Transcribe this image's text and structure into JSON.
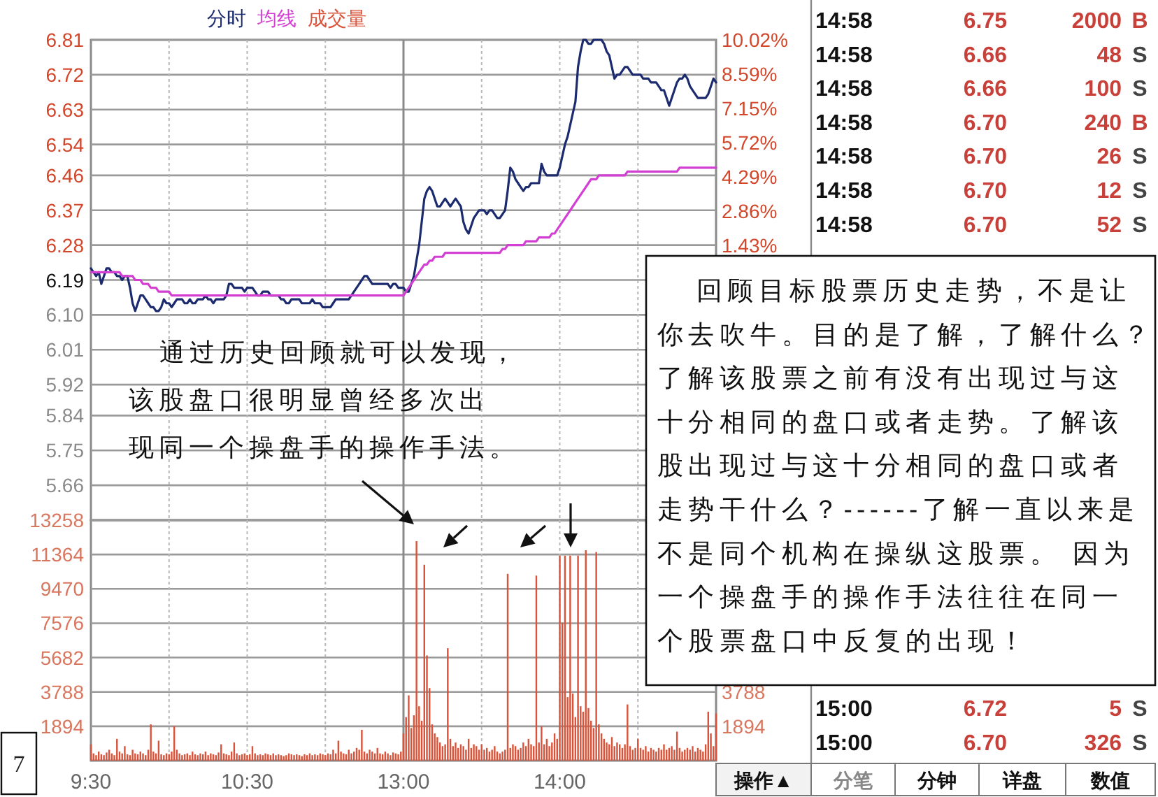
{
  "chart_data": [
    {
      "type": "line",
      "ylim": [
        5.57,
        6.81
      ],
      "y2lim": [
        -10.02,
        10.02
      ],
      "tick_labels": "y",
      "grid": true,
      "legend": "top left",
      "yticks": [
        6.81,
        6.72,
        6.63,
        6.54,
        6.46,
        6.37,
        6.28,
        6.19,
        {
          "value": 6.1,
          "label": "6.10"
        },
        6.01,
        5.92,
        5.84,
        5.75,
        5.66
      ],
      "y2ticks": [
        {
          "value": 10.02,
          "label": "10.02%"
        },
        {
          "value": 8.59,
          "label": "8.59%"
        },
        {
          "value": 7.15,
          "label": "7.15%"
        },
        {
          "value": 5.72,
          "label": "5.72%"
        },
        {
          "value": 4.29,
          "label": "4.29%"
        },
        {
          "value": 2.86,
          "label": "2.86%"
        },
        {
          "value": 1.43,
          "label": "1.43%"
        }
      ],
      "annotations": [
        "通过历史回顾就可以发现，该股盘口很明显曾经多次出现同一个操盘手的操作手法。",
        "回顾目标股票历史走势，不是让你去吹牛。目的是了解，了解什么？了解该股票之前有没有出现过与这十分相同的盘口或者走势。了解该股出现过与这十分相同的盘口或者走势干什么？------了解一直以来是不是同个机构在操纵这股票。 因为一个操盘手的操作手法往往在同一个股票盘口中反复的出现！"
      ],
      "series": [
        {
          "name": "分时",
          "color": "#1c2a6e",
          "values": [
            6.22,
            6.21,
            6.2,
            6.21,
            6.18,
            6.2,
            6.22,
            6.22,
            6.21,
            6.21,
            6.2,
            6.2,
            6.19,
            6.2,
            6.2,
            6.17,
            6.13,
            6.11,
            6.13,
            6.15,
            6.15,
            6.14,
            6.13,
            6.12,
            6.12,
            6.11,
            6.11,
            6.12,
            6.14,
            6.13,
            6.13,
            6.12,
            6.13,
            6.14,
            6.14,
            6.14,
            6.13,
            6.13,
            6.14,
            6.13,
            6.13,
            6.14,
            6.14,
            6.14,
            6.15,
            6.14,
            6.14,
            6.13,
            6.14,
            6.14,
            6.14,
            6.14,
            6.15,
            6.18,
            6.18,
            6.17,
            6.17,
            6.17,
            6.17,
            6.16,
            6.17,
            6.17,
            6.17,
            6.16,
            6.15,
            6.15,
            6.16,
            6.16,
            6.16,
            6.15,
            6.15,
            6.15,
            6.15,
            6.14,
            6.14,
            6.13,
            6.13,
            6.14,
            6.14,
            6.14,
            6.14,
            6.13,
            6.13,
            6.13,
            6.13,
            6.14,
            6.13,
            6.13,
            6.13,
            6.12,
            6.12,
            6.12,
            6.12,
            6.13,
            6.14,
            6.14,
            6.14,
            6.14,
            6.14,
            6.14,
            6.15,
            6.16,
            6.17,
            6.18,
            6.19,
            6.2,
            6.2,
            6.19,
            6.18,
            6.18,
            6.18,
            6.18,
            6.18,
            6.18,
            6.18,
            6.17,
            6.18,
            6.18,
            6.17,
            6.17,
            6.17,
            6.16,
            6.16,
            6.18,
            6.2,
            6.24,
            6.28,
            6.34,
            6.4,
            6.42,
            6.43,
            6.42,
            6.4,
            6.38,
            6.38,
            6.39,
            6.4,
            6.39,
            6.38,
            6.39,
            6.4,
            6.39,
            6.38,
            6.34,
            6.32,
            6.31,
            6.33,
            6.35,
            6.36,
            6.37,
            6.37,
            6.37,
            6.36,
            6.37,
            6.37,
            6.36,
            6.35,
            6.35,
            6.36,
            6.37,
            6.42,
            6.48,
            6.47,
            6.45,
            6.44,
            6.43,
            6.42,
            6.43,
            6.43,
            6.44,
            6.44,
            6.44,
            6.44,
            6.49,
            6.47,
            6.46,
            6.46,
            6.46,
            6.46,
            6.46,
            6.48,
            6.51,
            6.54,
            6.56,
            6.59,
            6.62,
            6.65,
            6.74,
            6.78,
            6.81,
            6.81,
            6.8,
            6.8,
            6.81,
            6.81,
            6.81,
            6.81,
            6.8,
            6.78,
            6.77,
            6.74,
            6.71,
            6.72,
            6.72,
            6.73,
            6.74,
            6.74,
            6.73,
            6.72,
            6.72,
            6.72,
            6.72,
            6.71,
            6.71,
            6.71,
            6.7,
            6.7,
            6.7,
            6.69,
            6.68,
            6.68,
            6.66,
            6.64,
            6.66,
            6.68,
            6.7,
            6.71,
            6.71,
            6.72,
            6.71,
            6.69,
            6.68,
            6.67,
            6.66,
            6.66,
            6.66,
            6.66,
            6.67,
            6.69,
            6.71,
            6.7
          ]
        },
        {
          "name": "均线",
          "color": "#d23fd2",
          "values": [
            6.21,
            6.21,
            6.21,
            6.21,
            6.21,
            6.21,
            6.21,
            6.21,
            6.21,
            6.21,
            6.21,
            6.21,
            6.2,
            6.2,
            6.2,
            6.2,
            6.2,
            6.19,
            6.19,
            6.19,
            6.18,
            6.18,
            6.18,
            6.17,
            6.17,
            6.17,
            6.16,
            6.16,
            6.16,
            6.16,
            6.16,
            6.15,
            6.15,
            6.15,
            6.15,
            6.15,
            6.15,
            6.15,
            6.15,
            6.15,
            6.15,
            6.15,
            6.15,
            6.15,
            6.15,
            6.15,
            6.15,
            6.15,
            6.15,
            6.15,
            6.15,
            6.15,
            6.15,
            6.15,
            6.15,
            6.15,
            6.15,
            6.15,
            6.15,
            6.15,
            6.15,
            6.15,
            6.15,
            6.15,
            6.15,
            6.15,
            6.15,
            6.15,
            6.15,
            6.15,
            6.15,
            6.15,
            6.15,
            6.15,
            6.15,
            6.15,
            6.15,
            6.15,
            6.15,
            6.15,
            6.15,
            6.15,
            6.15,
            6.15,
            6.15,
            6.15,
            6.15,
            6.15,
            6.15,
            6.15,
            6.15,
            6.15,
            6.15,
            6.15,
            6.15,
            6.15,
            6.15,
            6.15,
            6.15,
            6.15,
            6.15,
            6.15,
            6.15,
            6.15,
            6.15,
            6.15,
            6.15,
            6.15,
            6.15,
            6.15,
            6.15,
            6.15,
            6.15,
            6.15,
            6.15,
            6.15,
            6.15,
            6.15,
            6.15,
            6.15,
            6.15,
            6.16,
            6.17,
            6.18,
            6.19,
            6.2,
            6.21,
            6.22,
            6.23,
            6.23,
            6.24,
            6.24,
            6.25,
            6.25,
            6.25,
            6.25,
            6.26,
            6.26,
            6.26,
            6.26,
            6.26,
            6.26,
            6.26,
            6.26,
            6.26,
            6.26,
            6.26,
            6.26,
            6.26,
            6.26,
            6.26,
            6.26,
            6.26,
            6.26,
            6.26,
            6.26,
            6.26,
            6.26,
            6.27,
            6.27,
            6.28,
            6.28,
            6.28,
            6.28,
            6.28,
            6.28,
            6.28,
            6.29,
            6.29,
            6.29,
            6.29,
            6.29,
            6.3,
            6.3,
            6.3,
            6.3,
            6.3,
            6.31,
            6.31,
            6.32,
            6.33,
            6.34,
            6.35,
            6.36,
            6.37,
            6.38,
            6.39,
            6.4,
            6.41,
            6.42,
            6.43,
            6.44,
            6.45,
            6.45,
            6.45,
            6.46,
            6.46,
            6.46,
            6.46,
            6.46,
            6.46,
            6.46,
            6.46,
            6.46,
            6.46,
            6.46,
            6.47,
            6.47,
            6.47,
            6.47,
            6.47,
            6.47,
            6.47,
            6.47,
            6.47,
            6.47,
            6.47,
            6.47,
            6.47,
            6.47,
            6.47,
            6.47,
            6.47,
            6.47,
            6.47,
            6.47,
            6.48,
            6.48,
            6.48,
            6.48,
            6.48,
            6.48,
            6.48,
            6.48,
            6.48,
            6.48,
            6.48,
            6.48,
            6.48,
            6.48,
            6.48
          ]
        }
      ]
    },
    {
      "type": "bar",
      "ylim": [
        0,
        13258
      ],
      "y2lim": [
        0,
        13258
      ],
      "grid": true,
      "legend": "top left",
      "categories": [
        "9:30",
        null,
        null,
        null,
        null,
        null,
        null,
        null,
        null,
        null,
        null,
        null,
        null,
        null,
        null,
        null,
        null,
        null,
        null,
        null,
        null,
        null,
        null,
        null,
        null,
        null,
        null,
        null,
        null,
        null,
        null,
        null,
        null,
        null,
        null,
        null,
        null,
        null,
        null,
        null,
        null,
        null,
        null,
        null,
        null,
        null,
        null,
        null,
        null,
        null,
        null,
        null,
        null,
        null,
        null,
        null,
        null,
        null,
        null,
        null,
        "10:30",
        null,
        null,
        null,
        null,
        null,
        null,
        null,
        null,
        null,
        null,
        null,
        null,
        null,
        null,
        null,
        null,
        null,
        null,
        null,
        null,
        null,
        null,
        null,
        null,
        null,
        null,
        null,
        null,
        null,
        null,
        null,
        null,
        null,
        null,
        null,
        null,
        null,
        null,
        null,
        null,
        null,
        null,
        null,
        null,
        null,
        null,
        null,
        null,
        null,
        null,
        null,
        null,
        null,
        null,
        null,
        null,
        null,
        null,
        null,
        "13:00",
        null,
        null,
        null,
        null,
        null,
        null,
        null,
        null,
        null,
        null,
        null,
        null,
        null,
        null,
        null,
        null,
        null,
        null,
        null,
        null,
        null,
        null,
        null,
        null,
        null,
        null,
        null,
        null,
        null,
        null,
        null,
        null,
        null,
        null,
        null,
        null,
        null,
        null,
        null,
        null,
        null,
        null,
        null,
        null,
        null,
        null,
        null,
        null,
        null,
        null,
        null,
        null,
        null,
        null,
        null,
        null,
        null,
        null,
        null,
        "14:00",
        null,
        null,
        null,
        null,
        null,
        null,
        null,
        null,
        null,
        null,
        null,
        null,
        null,
        null,
        null,
        null,
        null,
        null,
        null,
        null,
        null,
        null,
        null,
        null,
        null,
        null,
        null,
        null,
        null,
        null,
        null,
        null,
        null,
        null,
        null,
        null,
        null,
        null,
        null,
        null,
        null,
        null,
        null,
        null,
        null,
        null,
        null,
        null,
        null,
        null,
        null,
        null,
        null,
        null,
        null,
        null,
        null,
        null,
        null,
        null
      ],
      "yticks": [
        13258,
        11364,
        9470,
        7576,
        5682,
        3788,
        1894
      ],
      "y2ticks": [
        3788,
        1894
      ],
      "annotations": [
        "7"
      ],
      "series": [
        {
          "name": "成交量",
          "color": "#d9533a",
          "values": [
            900,
            400,
            300,
            500,
            350,
            300,
            450,
            600,
            400,
            300,
            1200,
            500,
            400,
            800,
            350,
            300,
            600,
            400,
            350,
            500,
            400,
            300,
            600,
            2000,
            500,
            400,
            1100,
            350,
            300,
            400,
            350,
            500,
            1900,
            600,
            400,
            300,
            350,
            400,
            300,
            500,
            350,
            300,
            400,
            350,
            500,
            300,
            400,
            350,
            300,
            450,
            900,
            400,
            350,
            300,
            500,
            1000,
            400,
            300,
            350,
            400,
            300,
            350,
            800,
            400,
            300,
            350,
            300,
            400,
            350,
            300,
            400,
            300,
            350,
            300,
            250,
            300,
            400,
            350,
            300,
            350,
            300,
            250,
            350,
            300,
            400,
            300,
            350,
            300,
            400,
            350,
            300,
            400,
            350,
            600,
            400,
            1100,
            500,
            400,
            350,
            600,
            400,
            500,
            700,
            600,
            1700,
            500,
            400,
            600,
            500,
            400,
            700,
            400,
            350,
            500,
            400,
            300,
            450,
            400,
            350,
            500,
            1500,
            2400,
            3600,
            1800,
            2500,
            12100,
            3000,
            2200,
            10800,
            5800,
            4000,
            2000,
            1500,
            1300,
            1000,
            800,
            900,
            6200,
            1200,
            800,
            1000,
            700,
            900,
            800,
            600,
            1200,
            700,
            900,
            800,
            600,
            900,
            600,
            700,
            500,
            600,
            800,
            500,
            400,
            500,
            600,
            10300,
            700,
            900,
            800,
            600,
            700,
            1000,
            800,
            1200,
            900,
            800,
            10200,
            1000,
            1900,
            900,
            1200,
            800,
            1000,
            1500,
            1200,
            11300,
            7600,
            11300,
            3500,
            11300,
            3700,
            2400,
            11300,
            3000,
            2700,
            11600,
            2900,
            2200,
            1800,
            11500,
            2000,
            1500,
            1200,
            1000,
            900,
            1300,
            800,
            1000,
            900,
            700,
            900,
            3100,
            800,
            600,
            700,
            1200,
            700,
            600,
            800,
            500,
            700,
            600,
            500,
            700,
            600,
            900,
            600,
            700,
            800,
            600,
            1600,
            700,
            500,
            600,
            700,
            600,
            800,
            500,
            700,
            600,
            500,
            900,
            2700,
            1500,
            800,
            2600
          ]
        }
      ]
    },
    {
      "type": "other",
      "annotations": [
        "14:58",
        "6.75",
        "2000",
        "B",
        "14:58",
        "6.66",
        "48",
        "S",
        "14:58",
        "6.66",
        "100",
        "S",
        "14:58",
        "6.70",
        "240",
        "B",
        "14:58",
        "6.70",
        "26",
        "S",
        "14:58",
        "6.70",
        "12",
        "S",
        "14:58",
        "6.70",
        "52",
        "S",
        "15:00",
        "6.72",
        "5",
        "S",
        "15:00",
        "6.70",
        "326",
        "S",
        "操作▲",
        "分笔",
        "分钟",
        "详盘",
        "数值"
      ]
    }
  ]
}
